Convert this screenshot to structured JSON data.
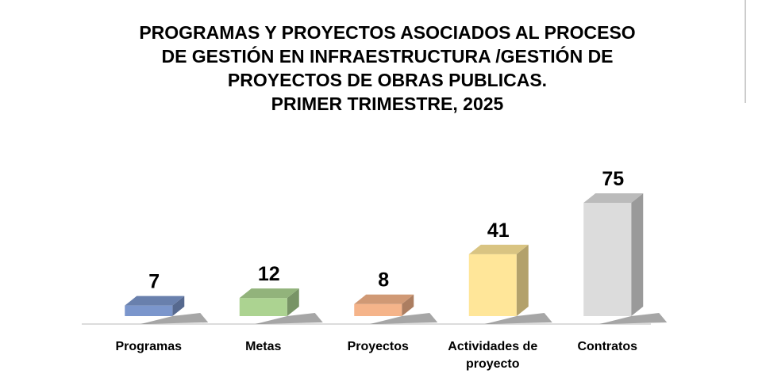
{
  "chart_data": {
    "type": "bar3d",
    "title": [
      "PROGRAMAS Y PROYECTOS ASOCIADOS AL PROCESO",
      "DE GESTIÓN EN INFRAESTRUCTURA /GESTIÓN DE",
      "PROYECTOS DE OBRAS PUBLICAS.",
      "PRIMER TRIMESTRE, 2025"
    ],
    "categories": [
      "Programas",
      "Metas",
      "Proyectos",
      "Actividades de proyecto",
      "Contratos"
    ],
    "values": [
      7,
      12,
      8,
      41,
      75
    ],
    "colors": [
      "#7b96cc",
      "#acd391",
      "#f5b48a",
      "#ffe699",
      "#dcdcdc"
    ]
  }
}
